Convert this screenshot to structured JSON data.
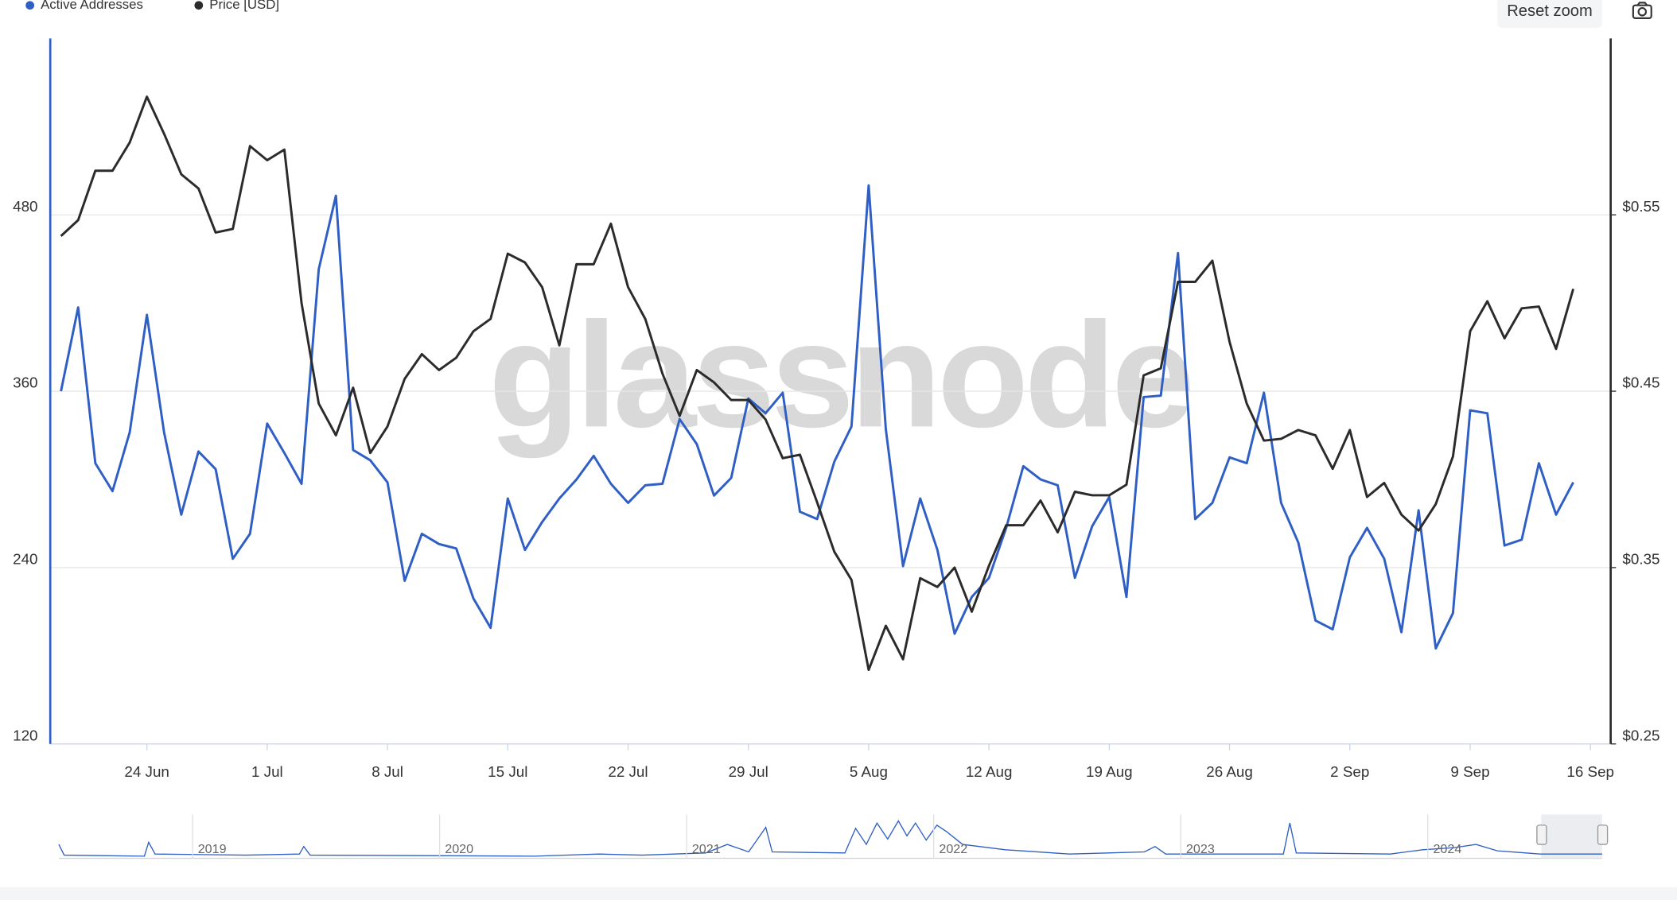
{
  "chart_data": {
    "type": "line",
    "watermark": "glassnode",
    "reset_zoom": "Reset zoom",
    "grid": true,
    "legend": "top-left",
    "categories": [
      "19 Jun",
      "20 Jun",
      "21 Jun",
      "22 Jun",
      "23 Jun",
      "24 Jun",
      "25 Jun",
      "26 Jun",
      "27 Jun",
      "28 Jun",
      "29 Jun",
      "30 Jun",
      "1 Jul",
      "2 Jul",
      "3 Jul",
      "4 Jul",
      "5 Jul",
      "6 Jul",
      "7 Jul",
      "8 Jul",
      "9 Jul",
      "10 Jul",
      "11 Jul",
      "12 Jul",
      "13 Jul",
      "14 Jul",
      "15 Jul",
      "16 Jul",
      "17 Jul",
      "18 Jul",
      "19 Jul",
      "20 Jul",
      "21 Jul",
      "22 Jul",
      "23 Jul",
      "24 Jul",
      "25 Jul",
      "26 Jul",
      "27 Jul",
      "28 Jul",
      "29 Jul",
      "30 Jul",
      "31 Jul",
      "1 Aug",
      "2 Aug",
      "3 Aug",
      "4 Aug",
      "5 Aug",
      "6 Aug",
      "7 Aug",
      "8 Aug",
      "9 Aug",
      "10 Aug",
      "11 Aug",
      "12 Aug",
      "13 Aug",
      "14 Aug",
      "15 Aug",
      "16 Aug",
      "17 Aug",
      "18 Aug",
      "19 Aug",
      "20 Aug",
      "21 Aug",
      "22 Aug",
      "23 Aug",
      "24 Aug",
      "25 Aug",
      "26 Aug",
      "27 Aug",
      "28 Aug",
      "29 Aug",
      "30 Aug",
      "31 Aug",
      "1 Sep",
      "2 Sep",
      "3 Sep",
      "4 Sep",
      "5 Sep",
      "6 Sep",
      "7 Sep",
      "8 Sep",
      "9 Sep",
      "10 Sep",
      "11 Sep",
      "12 Sep",
      "13 Sep",
      "14 Sep",
      "15 Sep"
    ],
    "xticks": [
      "24 Jun",
      "1 Jul",
      "8 Jul",
      "15 Jul",
      "22 Jul",
      "29 Jul",
      "5 Aug",
      "12 Aug",
      "19 Aug",
      "26 Aug",
      "2 Sep",
      "9 Sep",
      "16 Sep"
    ],
    "ylim": [
      120,
      600
    ],
    "yticks": [
      120,
      240,
      360,
      480
    ],
    "y2lim": [
      0.25,
      0.65
    ],
    "y2ticks": [
      {
        "value": 0.25,
        "label": "$0.25"
      },
      {
        "value": 0.35,
        "label": "$0.35"
      },
      {
        "value": 0.45,
        "label": "$0.45"
      },
      {
        "value": 0.55,
        "label": "$0.55"
      }
    ],
    "series": [
      {
        "name": "Active Addresses",
        "color": "#2f5fc4",
        "values": [
          360,
          417,
          311,
          292,
          332,
          412,
          332,
          276,
          319,
          307,
          246,
          263,
          338,
          318,
          297,
          443,
          493,
          320,
          313,
          298,
          231,
          263,
          256,
          253,
          219,
          199,
          287,
          252,
          271,
          287,
          300,
          316,
          297,
          284,
          296,
          297,
          341,
          324,
          289,
          301,
          355,
          345,
          359,
          278,
          273,
          312,
          336,
          500,
          334,
          241,
          287,
          252,
          195,
          220,
          233,
          267,
          309,
          300,
          296,
          233,
          268,
          288,
          220,
          356,
          357,
          454,
          273,
          284,
          315,
          311,
          359,
          284,
          257,
          204,
          198,
          247,
          267,
          246,
          196,
          279,
          185,
          209,
          347,
          345,
          255,
          259,
          311,
          276,
          298
        ]
      },
      {
        "name": "Price [USD]",
        "color": "#2b2b2b",
        "axis": "y2",
        "values": [
          0.538,
          0.547,
          0.575,
          0.575,
          0.591,
          0.617,
          0.596,
          0.573,
          0.565,
          0.54,
          0.542,
          0.589,
          0.581,
          0.587,
          0.5,
          0.443,
          0.425,
          0.452,
          0.415,
          0.43,
          0.457,
          0.471,
          0.462,
          0.469,
          0.484,
          0.491,
          0.528,
          0.523,
          0.509,
          0.476,
          0.522,
          0.522,
          0.545,
          0.509,
          0.491,
          0.46,
          0.436,
          0.462,
          0.455,
          0.445,
          0.445,
          0.434,
          0.412,
          0.414,
          0.387,
          0.359,
          0.343,
          0.292,
          0.317,
          0.298,
          0.344,
          0.339,
          0.35,
          0.325,
          0.351,
          0.374,
          0.374,
          0.388,
          0.37,
          0.393,
          0.391,
          0.391,
          0.397,
          0.459,
          0.463,
          0.512,
          0.512,
          0.524,
          0.478,
          0.443,
          0.422,
          0.423,
          0.428,
          0.425,
          0.406,
          0.428,
          0.39,
          0.398,
          0.38,
          0.371,
          0.386,
          0.413,
          0.484,
          0.501,
          0.48,
          0.497,
          0.498,
          0.474,
          0.508
        ]
      }
    ],
    "navigator": {
      "labels": [
        "2019",
        "2020",
        "2021",
        "2022",
        "2023",
        "2024"
      ]
    }
  }
}
